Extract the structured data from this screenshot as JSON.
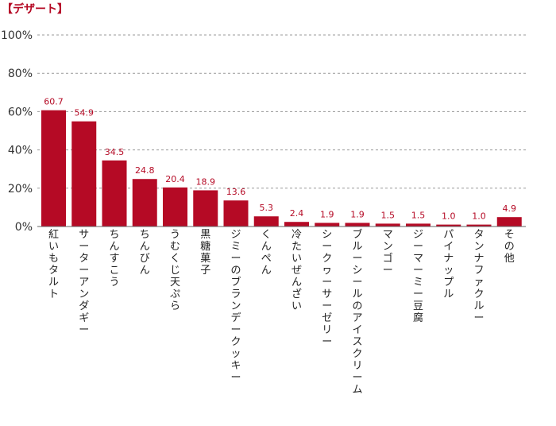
{
  "chart_data": {
    "type": "bar",
    "title": "【デザート】",
    "xlabel": "",
    "ylabel": "",
    "ylim": [
      0,
      100
    ],
    "yticks": [
      0,
      20,
      40,
      60,
      80,
      100
    ],
    "ytick_labels": [
      "0%",
      "20%",
      "40%",
      "60%",
      "80%",
      "100%"
    ],
    "grid": true,
    "categories": [
      "紅いもタルト",
      "サーターアンダギー",
      "ちんすこう",
      "ちんびん",
      "うむくじ天ぷら",
      "黒糖菓子",
      "ジミーのブランデークッキー",
      "くんぺん",
      "冷たいぜんざい",
      "シークヮーサーゼリー",
      "ブルーシールのアイスクリーム",
      "マンゴー",
      "ジーマーミー豆腐",
      "パイナップル",
      "タンナファクルー",
      "その他"
    ],
    "values": [
      60.7,
      54.9,
      34.5,
      24.8,
      20.4,
      18.9,
      13.6,
      5.3,
      2.4,
      1.9,
      1.9,
      1.5,
      1.5,
      1.0,
      1.0,
      4.9
    ],
    "value_labels": [
      "60.7",
      "54.9",
      "34.5",
      "24.8",
      "20.4",
      "18.9",
      "13.6",
      "5.3",
      "2.4",
      "1.9",
      "1.9",
      "1.5",
      "1.5",
      "1.0",
      "1.0",
      "4.9"
    ],
    "colors": {
      "bar": "#b50a25",
      "label": "#b50a25",
      "title": "#b50a25",
      "grid": "#999999",
      "axis": "#666666"
    }
  }
}
